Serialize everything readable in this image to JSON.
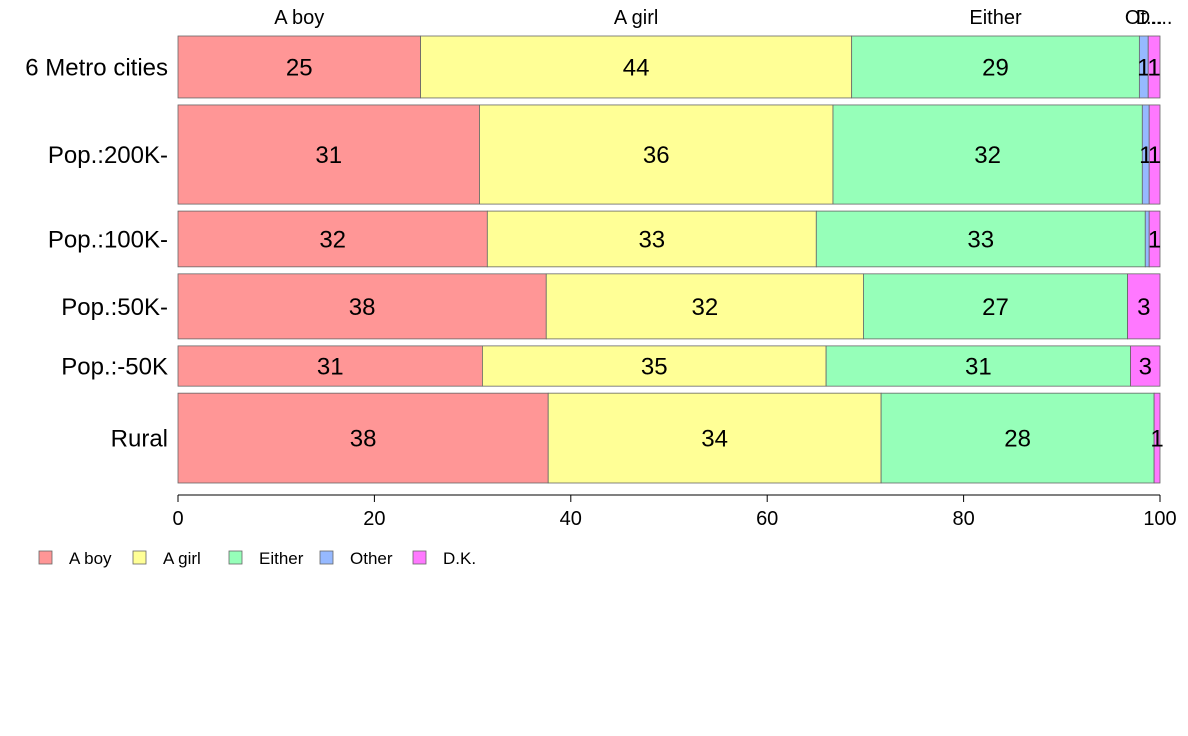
{
  "chart_data": {
    "type": "bar",
    "orientation": "horizontal",
    "stacked": true,
    "categories": [
      "6 Metro cities",
      "Pop.:200K-",
      "Pop.:100K-",
      "Pop.:50K-",
      "Pop.:-50K",
      "Rural"
    ],
    "column_widths": [
      1.0,
      1.6,
      0.9,
      1.05,
      0.65,
      1.45
    ],
    "series": [
      {
        "name": "A boy",
        "color": "#FF9696",
        "values": [
          24.7,
          30.7,
          31.5,
          37.5,
          31.0,
          37.7
        ],
        "labels": [
          "25",
          "31",
          "32",
          "38",
          "31",
          "38"
        ]
      },
      {
        "name": "A girl",
        "color": "#FFFF96",
        "values": [
          43.9,
          36.0,
          33.5,
          32.3,
          35.0,
          33.9
        ],
        "labels": [
          "44",
          "36",
          "33",
          "32",
          "35",
          "34"
        ]
      },
      {
        "name": "Either",
        "color": "#96FFB9",
        "values": [
          29.3,
          31.5,
          33.5,
          26.9,
          31.0,
          27.8
        ],
        "labels": [
          "29",
          "32",
          "33",
          "27",
          "31",
          "28"
        ]
      },
      {
        "name": "Other",
        "color": "#96B9FF",
        "values": [
          0.9,
          0.7,
          0.4,
          0.0,
          0.0,
          0.0
        ],
        "labels": [
          "1",
          "1",
          "",
          "",
          "",
          ""
        ]
      },
      {
        "name": "D.K.",
        "color": "#FF78FF",
        "values": [
          1.2,
          1.1,
          1.1,
          3.3,
          3.0,
          0.6
        ],
        "labels": [
          "1",
          "1",
          "1",
          "3",
          "3",
          "1"
        ]
      }
    ],
    "top_labels": [
      "A boy",
      "A girl",
      "Either",
      "Ot...",
      "D...."
    ],
    "xlim": [
      0,
      100
    ],
    "xticks": [
      "0",
      "20",
      "40",
      "60",
      "80",
      "100"
    ],
    "grid": false,
    "legend_position": "bottom-left"
  }
}
